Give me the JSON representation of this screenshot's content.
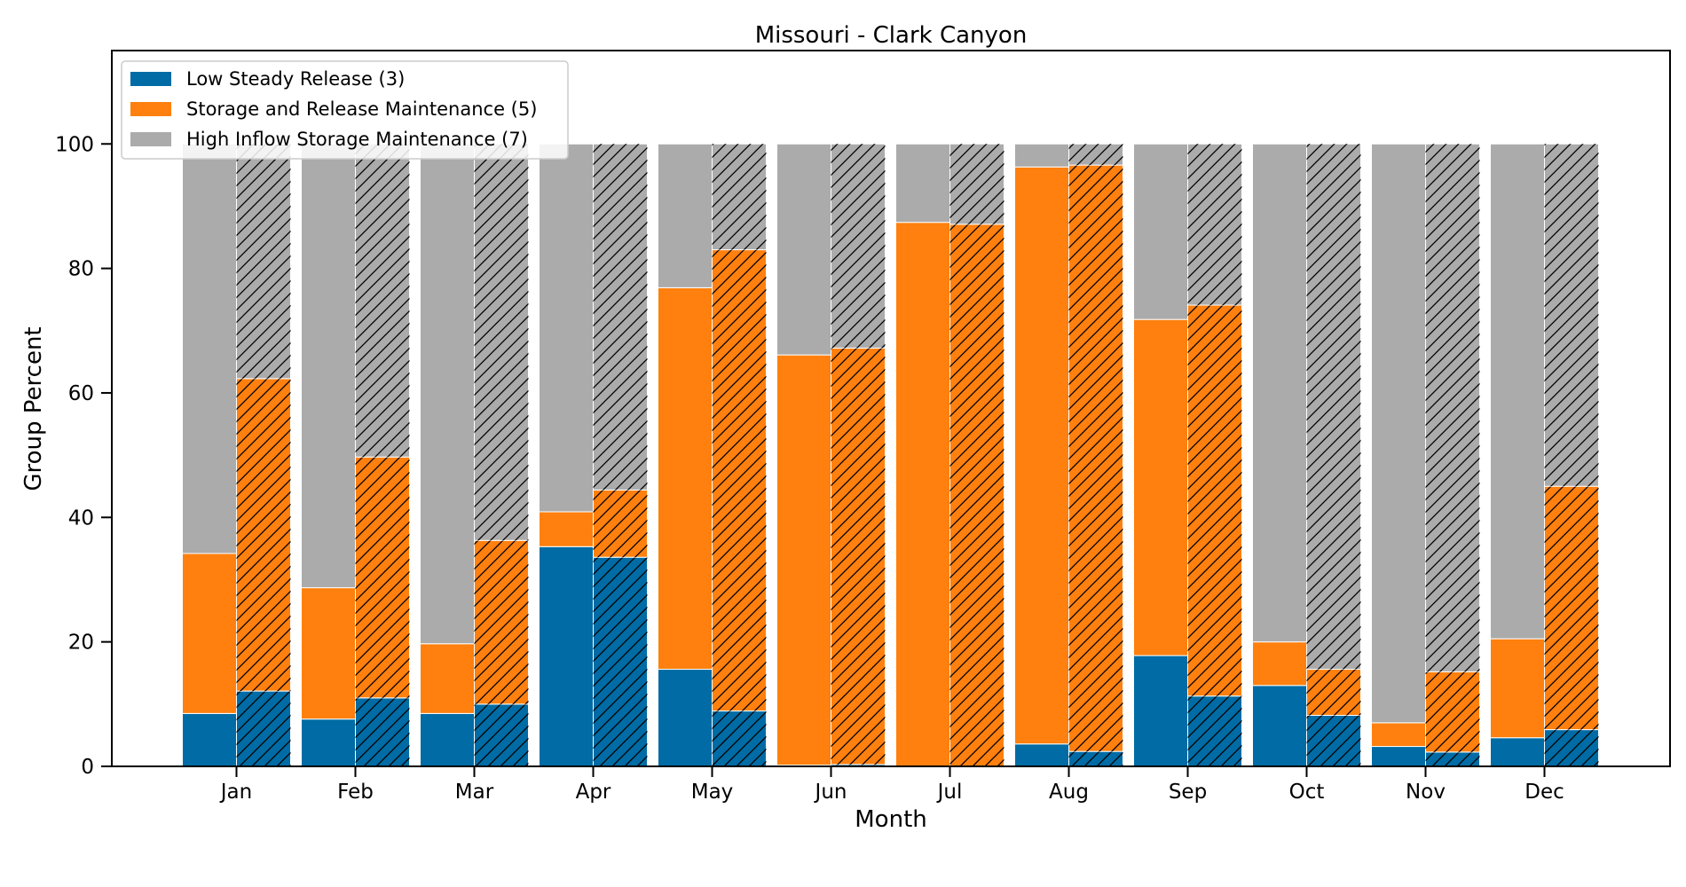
{
  "chart_data": {
    "type": "bar",
    "title": "Missouri - Clark Canyon",
    "xlabel": "Month",
    "ylabel": "Group Percent",
    "ylim": [
      0,
      115
    ],
    "yticks": [
      0,
      20,
      40,
      60,
      80,
      100
    ],
    "grid": false,
    "legend_position": "top-left",
    "stacked": true,
    "bars_per_category": 2,
    "categories": [
      "Jan",
      "Feb",
      "Mar",
      "Apr",
      "May",
      "Jun",
      "Jul",
      "Aug",
      "Sep",
      "Oct",
      "Nov",
      "Dec"
    ],
    "series": [
      {
        "name": "Low Steady Release (3)",
        "color": "#006ba4",
        "solid": [
          8.5,
          7.6,
          8.5,
          35.3,
          15.6,
          0.2,
          0.0,
          3.6,
          17.8,
          13.0,
          3.2,
          4.6
        ],
        "hatched": [
          12.1,
          11.0,
          10.0,
          33.6,
          8.9,
          0.3,
          0.0,
          2.4,
          11.3,
          8.2,
          2.3,
          5.9
        ]
      },
      {
        "name": "Storage and Release Maintenance (5)",
        "color": "#ff800e",
        "solid": [
          25.7,
          21.1,
          11.2,
          5.6,
          61.3,
          65.9,
          87.4,
          92.7,
          54.0,
          7.0,
          3.8,
          15.9
        ],
        "hatched": [
          50.2,
          38.7,
          26.3,
          10.8,
          74.1,
          66.9,
          87.1,
          94.2,
          62.8,
          7.4,
          12.9,
          39.1
        ]
      },
      {
        "name": "High Inflow Storage Maintenance (7)",
        "color": "#ababab",
        "solid": [
          65.8,
          71.3,
          80.3,
          59.1,
          23.1,
          33.9,
          12.6,
          3.7,
          28.2,
          80.0,
          93.0,
          79.5
        ],
        "hatched": [
          37.7,
          50.3,
          63.7,
          55.6,
          17.0,
          32.8,
          12.9,
          3.4,
          25.9,
          84.4,
          84.8,
          55.0
        ]
      }
    ]
  }
}
